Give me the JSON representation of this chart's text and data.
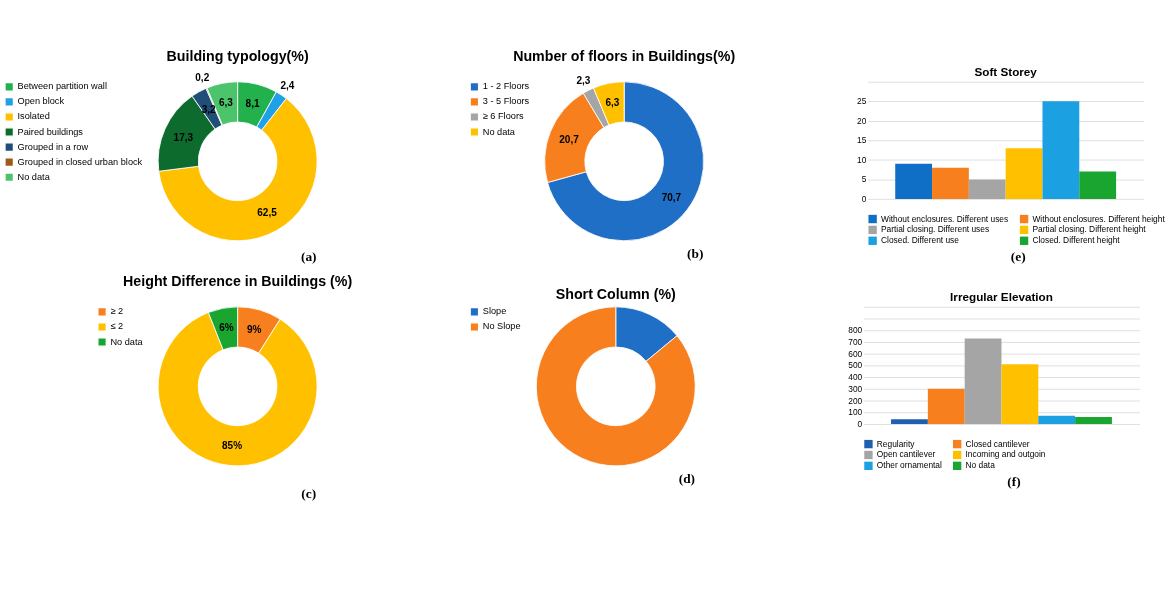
{
  "chart_data": [
    {
      "type": "donut",
      "title": "Building typology(%)",
      "categories": [
        "Between partition wall",
        "Open block",
        "Isolated",
        "Paired buildings",
        "Grouped in a row",
        "Grouped in closed urban block",
        "No data"
      ],
      "values": [
        8.1,
        2.4,
        62.5,
        17.3,
        3.2,
        0.2,
        6.3
      ],
      "colors": [
        "#22b14c",
        "#1ea1e6",
        "#ffc000",
        "#0e6b2e",
        "#1f4e79",
        "#9c5b16",
        "#4cc46c"
      ],
      "value_labels": [
        "8,1",
        "2,4",
        "62,5",
        "17,3",
        "3,2",
        "0,2",
        "6,3"
      ],
      "legend": "left",
      "annotations": [
        "(a)"
      ]
    },
    {
      "type": "donut",
      "title": "Number of floors in Buildings(%)",
      "categories": [
        "1 - 2 Floors",
        "3 - 5 Floors",
        "≥ 6 Floors",
        "No data"
      ],
      "values": [
        70.7,
        20.7,
        2.3,
        6.3
      ],
      "colors": [
        "#1f6fc6",
        "#f77f1e",
        "#a5a5a5",
        "#ffc000"
      ],
      "value_labels": [
        "70,7",
        "20,7",
        "2,3",
        "6,3"
      ],
      "legend": "left",
      "annotations": [
        "(b)"
      ]
    },
    {
      "type": "bar",
      "title": "Soft Storey",
      "categories": [
        null
      ],
      "series": [
        {
          "name": "Without enclosures. Different uses",
          "color": "#0f6fc6",
          "values": [
            9
          ]
        },
        {
          "name": "Without enclosures. Different height",
          "color": "#f77f1e",
          "values": [
            8
          ]
        },
        {
          "name": "Partial closing. Different uses",
          "color": "#a5a5a5",
          "values": [
            5
          ]
        },
        {
          "name": "Partial closing. Different height",
          "color": "#ffc000",
          "values": [
            13
          ]
        },
        {
          "name": "Closed. Different use",
          "color": "#1ba1e2",
          "values": [
            25
          ]
        },
        {
          "name": "Closed. Different height",
          "color": "#1aa530",
          "values": [
            7
          ]
        }
      ],
      "ylim": [
        0,
        30
      ],
      "yticks": [
        0,
        5,
        10,
        15,
        20,
        25,
        {
          "value": 30,
          "label": null
        }
      ],
      "grid": "y",
      "legend": "bottom",
      "annotations": [
        "(e)"
      ]
    },
    {
      "type": "donut",
      "title": "Height Difference in Buildings (%)",
      "categories": [
        "≥ 2",
        "≤ 2",
        "No data"
      ],
      "values": [
        9,
        85,
        6
      ],
      "colors": [
        "#f77f1e",
        "#ffc000",
        "#1aa530"
      ],
      "value_labels": [
        "9%",
        "85%",
        "6%"
      ],
      "legend": "left",
      "annotations": [
        "(c)"
      ]
    },
    {
      "type": "donut",
      "title": "Short Column (%)",
      "categories": [
        "Slope",
        "No Slope"
      ],
      "values": [
        14,
        86
      ],
      "colors": [
        "#1f6fc6",
        "#f77f1e"
      ],
      "legend": "left",
      "annotations": [
        "(d)"
      ]
    },
    {
      "type": "bar",
      "title": "Irregular Elevation",
      "categories": [
        null
      ],
      "series": [
        {
          "name": "Regularity",
          "color": "#1f5fb0",
          "values": [
            40
          ]
        },
        {
          "name": "Closed cantilever",
          "color": "#f77f1e",
          "values": [
            300
          ]
        },
        {
          "name": "Open cantilever",
          "color": "#a5a5a5",
          "values": [
            730
          ]
        },
        {
          "name": "Incoming and outgoin",
          "color": "#ffc000",
          "values": [
            510
          ]
        },
        {
          "name": "Other ornamental",
          "color": "#1ba1e2",
          "values": [
            70
          ]
        },
        {
          "name": "No data",
          "color": "#1aa530",
          "values": [
            60
          ]
        }
      ],
      "ylim": [
        0,
        1000
      ],
      "yticks": [
        0,
        100,
        200,
        300,
        400,
        500,
        600,
        700,
        800,
        {
          "value": 900,
          "label": null
        },
        {
          "value": 1000,
          "label": null
        }
      ],
      "grid": "y",
      "legend": "bottom",
      "annotations": [
        "(f)"
      ]
    }
  ]
}
